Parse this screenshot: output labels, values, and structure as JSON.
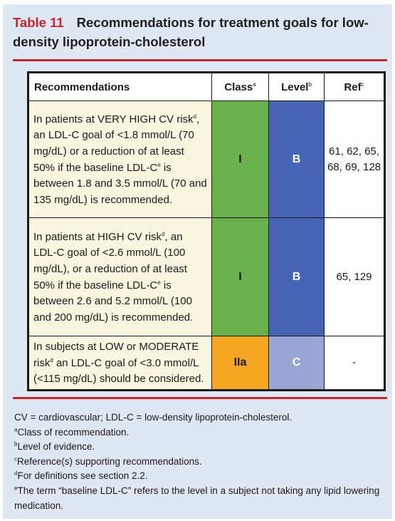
{
  "title": {
    "number": "Table 11",
    "text": "Recommendations for treatment goals for low-density lipoprotein-cholesterol"
  },
  "table": {
    "headers": {
      "recommendations": "Recommendations",
      "class": "Class",
      "class_sup": "a",
      "level": "Level",
      "level_sup": "b",
      "ref": "Ref",
      "ref_sup": "c"
    },
    "rows": [
      {
        "rec_part1": "In patients at VERY HIGH CV risk",
        "sup1": "d",
        "rec_part2": ", an LDL-C goal of <1.8 mmol/L (70 mg/dL) or a reduction of at least 50% if the baseline LDL-C",
        "sup2": "e",
        "rec_part3": " is between 1.8 and 3.5 mmol/L (70 and 135 mg/dL) is recommended.",
        "class": "I",
        "level": "B",
        "ref": "61, 62, 65, 68, 69, 128"
      },
      {
        "rec_part1": "In patients at HIGH CV risk",
        "sup1": "d",
        "rec_part2": ", an LDL-C goal of <2.6 mmol/L (100 mg/dL), or a reduction of at least 50% if the baseline LDL-C",
        "sup2": "e",
        "rec_part3": " is between 2.6 and 5.2 mmol/L (100 and 200 mg/dL) is recommended.",
        "class": "I",
        "level": "B",
        "ref": "65, 129"
      },
      {
        "rec_part1": "In subjects at LOW or MODERATE risk",
        "sup1": "d",
        "rec_part2": " an LDL-C goal of <3.0 mmol/L (<115 mg/dL) should be considered.",
        "class": "IIa",
        "level": "C",
        "ref": "-"
      }
    ]
  },
  "footnotes": {
    "abbrev": "CV = cardiovascular; LDL-C = low-density lipoprotein-cholesterol.",
    "a_mark": "a",
    "a": "Class of recommendation.",
    "b_mark": "b",
    "b": "Level of evidence.",
    "c_mark": "c",
    "c": "Reference(s) supporting recommendations.",
    "d_mark": "d",
    "d": "For definitions see section 2.2.",
    "e_mark": "e",
    "e": "The term “baseline LDL-C” refers to the level in a subject not taking any lipid lowering medication."
  },
  "colors": {
    "title_red": "#c4262e",
    "panel_bg": "#dfe7f3",
    "rec_cell_bg": "#f9f7df",
    "class_I": "#6ab04c",
    "class_IIa": "#f5a623",
    "level_B": "#4565b4",
    "level_C": "#9aa6d4"
  }
}
